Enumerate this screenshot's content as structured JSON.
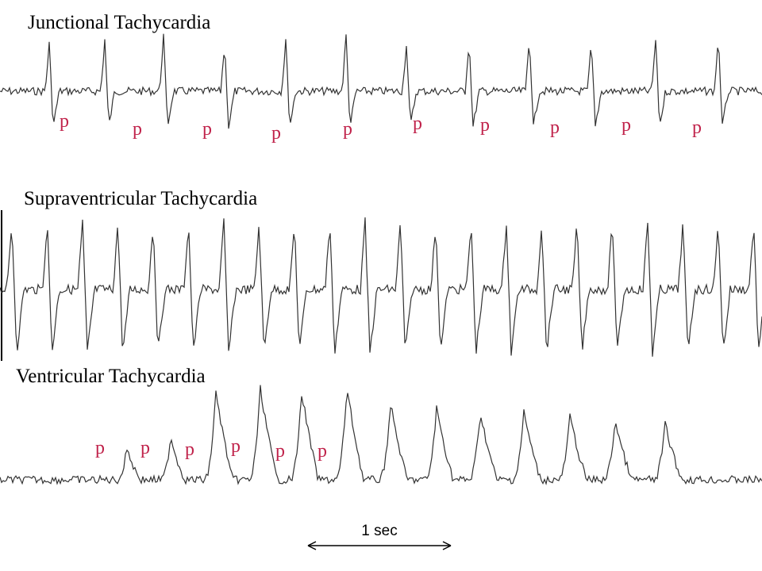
{
  "strips": [
    {
      "title": "Junctional Tachycardia",
      "p_labels": [
        "p",
        "p",
        "p",
        "p",
        "p",
        "p",
        "p",
        "p",
        "p",
        "p"
      ]
    },
    {
      "title": "Supraventricular Tachycardia",
      "p_labels": []
    },
    {
      "title": "Ventricular Tachycardia",
      "p_labels": [
        "p",
        "p",
        "p",
        "p",
        "p",
        "p"
      ]
    }
  ],
  "scale_label": "1 sec"
}
